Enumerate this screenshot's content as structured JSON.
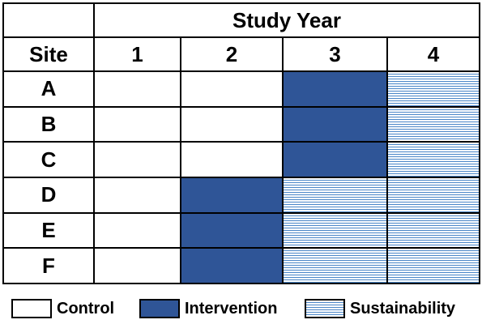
{
  "header": {
    "group_title": "Study Year",
    "site_label": "Site",
    "years": [
      "1",
      "2",
      "3",
      "4"
    ]
  },
  "rows": [
    {
      "site": "A",
      "phases": [
        "control",
        "control",
        "intervention",
        "sustainability"
      ]
    },
    {
      "site": "B",
      "phases": [
        "control",
        "control",
        "intervention",
        "sustainability"
      ]
    },
    {
      "site": "C",
      "phases": [
        "control",
        "control",
        "intervention",
        "sustainability"
      ]
    },
    {
      "site": "D",
      "phases": [
        "control",
        "intervention",
        "sustainability",
        "sustainability"
      ]
    },
    {
      "site": "E",
      "phases": [
        "control",
        "intervention",
        "sustainability",
        "sustainability"
      ]
    },
    {
      "site": "F",
      "phases": [
        "control",
        "intervention",
        "sustainability",
        "sustainability"
      ]
    }
  ],
  "legend": {
    "control": "Control",
    "intervention": "Intervention",
    "sustainability": "Sustainability"
  },
  "colors": {
    "control": "#ffffff",
    "intervention": "#2f5597",
    "sustainability_lines": "#4a86c8"
  }
}
